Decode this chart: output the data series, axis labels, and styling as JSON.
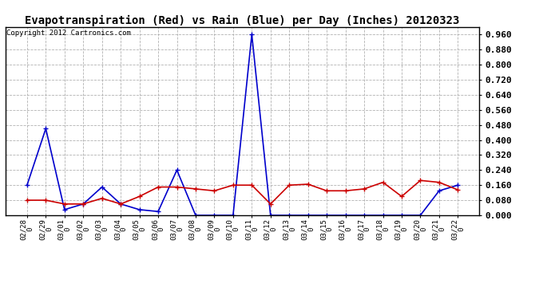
{
  "title": "Evapotranspiration (Red) vs Rain (Blue) per Day (Inches) 20120323",
  "copyright": "Copyright 2012 Cartronics.com",
  "labels": [
    "02/28\n0",
    "02/29\n0",
    "03/01\n0",
    "03/02\n0",
    "03/03\n0",
    "03/04\n0",
    "03/05\n0",
    "03/06\n0",
    "03/07\n0",
    "03/08\n0",
    "03/09\n0",
    "03/10\n0",
    "03/11\n0",
    "03/12\n0",
    "03/13\n0",
    "03/14\n0",
    "03/15\n0",
    "03/16\n0",
    "03/17\n0",
    "03/18\n0",
    "03/19\n0",
    "03/20\n0",
    "03/21\n0",
    "03/22\n0"
  ],
  "rain_blue": [
    0.16,
    0.46,
    0.03,
    0.06,
    0.15,
    0.06,
    0.03,
    0.02,
    0.24,
    0.0,
    0.0,
    0.0,
    0.96,
    0.0,
    0.0,
    0.0,
    0.0,
    0.0,
    0.0,
    0.0,
    0.0,
    0.0,
    0.13,
    0.16
  ],
  "et_red": [
    0.08,
    0.08,
    0.06,
    0.06,
    0.09,
    0.06,
    0.1,
    0.15,
    0.15,
    0.14,
    0.13,
    0.16,
    0.16,
    0.06,
    0.16,
    0.165,
    0.13,
    0.13,
    0.14,
    0.175,
    0.1,
    0.185,
    0.175,
    0.135
  ],
  "ylim": [
    0.0,
    1.0
  ],
  "yticks": [
    0.0,
    0.08,
    0.16,
    0.24,
    0.32,
    0.4,
    0.48,
    0.56,
    0.64,
    0.72,
    0.8,
    0.88,
    0.96
  ],
  "rain_color": "#0000CC",
  "et_color": "#CC0000",
  "bg_color": "#FFFFFF",
  "grid_color": "#AAAAAA",
  "title_fontsize": 10,
  "copyright_fontsize": 6.5,
  "tick_fontsize": 6.5,
  "ytick_fontsize": 8
}
